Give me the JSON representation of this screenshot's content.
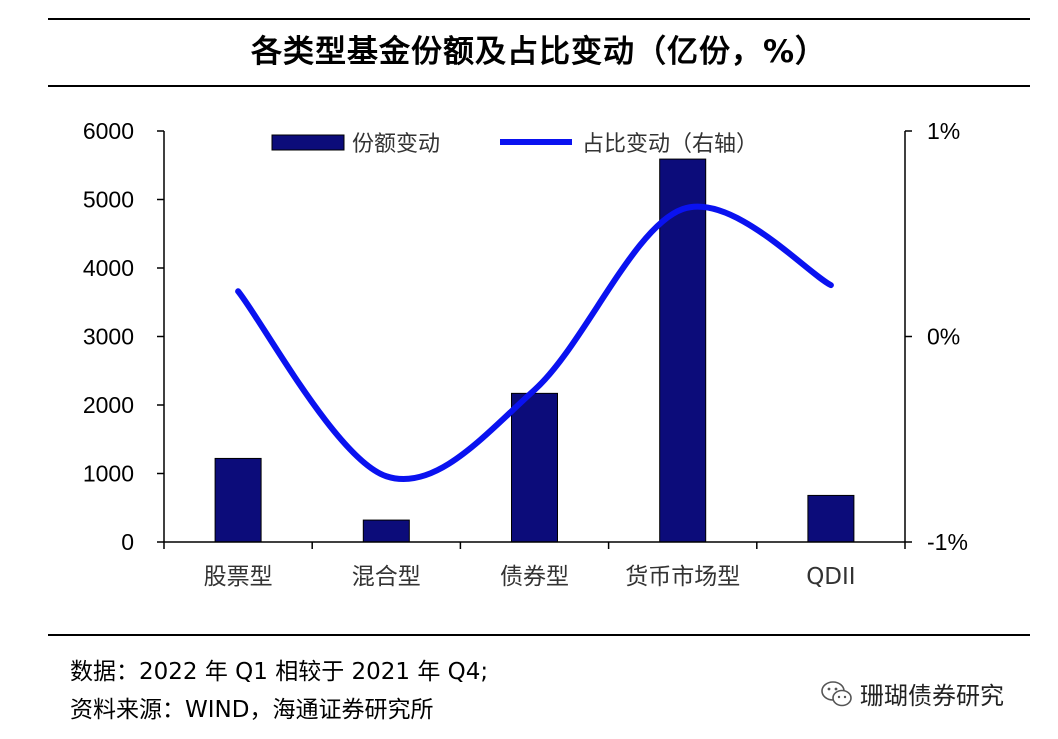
{
  "title": "各类型基金份额及占比变动（亿份，%）",
  "chart_data": {
    "type": "bar+line",
    "categories": [
      "股票型",
      "混合型",
      "债券型",
      "货币市场型",
      "QDII"
    ],
    "series": [
      {
        "name": "份额变动",
        "type": "bar",
        "axis": "left",
        "color": "#0c0c7a",
        "values": [
          1220,
          320,
          2170,
          5590,
          680
        ]
      },
      {
        "name": "占比变动（右轴）",
        "type": "line",
        "axis": "right",
        "color": "#0a12f0",
        "values": [
          0.22,
          -0.68,
          -0.26,
          0.62,
          0.25
        ]
      }
    ],
    "y_left": {
      "min": 0,
      "max": 6000,
      "ticks": [
        0,
        1000,
        2000,
        3000,
        4000,
        5000,
        6000
      ],
      "tick_labels": [
        "0",
        "1000",
        "2000",
        "3000",
        "4000",
        "5000",
        "6000"
      ]
    },
    "y_right": {
      "min": -1,
      "max": 1,
      "ticks": [
        -1,
        0,
        1
      ],
      "tick_labels": [
        "-1%",
        "0%",
        "1%"
      ]
    },
    "legend_position": "top-center",
    "grid": false
  },
  "notes": {
    "line1": "数据：2022 年 Q1 相较于 2021 年 Q4;",
    "line2": "资料来源：WIND，海通证券研究所"
  },
  "watermark": {
    "text": "珊瑚债券研究",
    "icon": "wechat-icon"
  }
}
